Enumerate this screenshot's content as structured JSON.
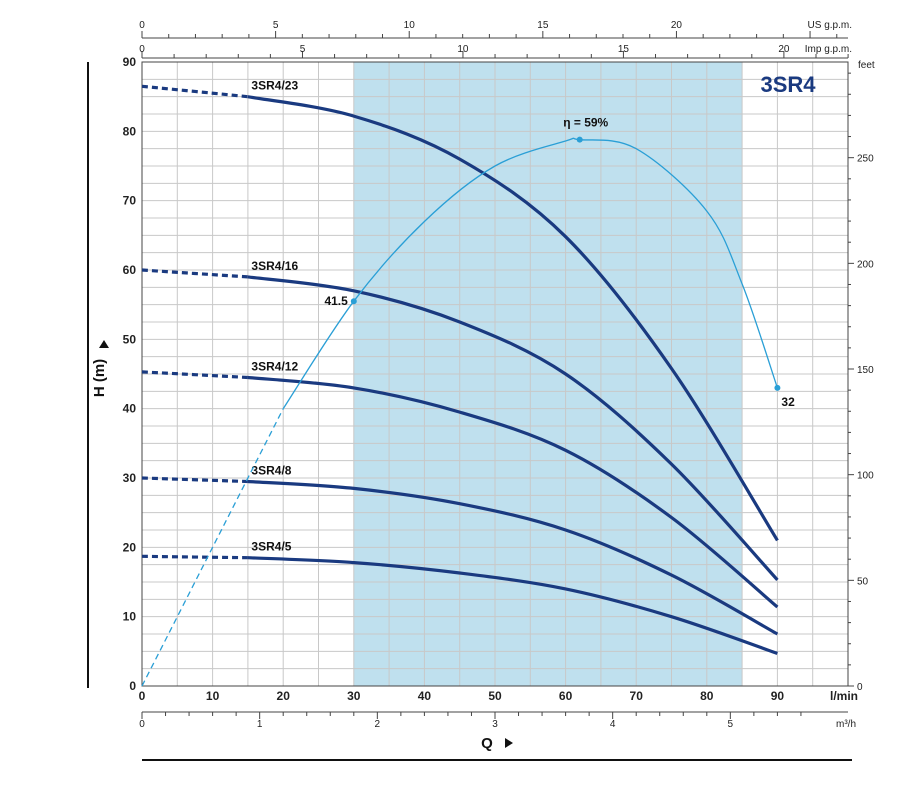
{
  "chart_data": {
    "type": "line",
    "title": "3SR4",
    "colors": {
      "curve": "#1a3a80",
      "efficiency": "#2a9fd6",
      "band": "#bfe0ee",
      "grid": "#c8c8c8",
      "title": "#1a3a80"
    },
    "x_axis": {
      "label": "l/min",
      "range": [
        0,
        100
      ],
      "ticks": [
        "0",
        "10",
        "20",
        "30",
        "40",
        "50",
        "60",
        "70",
        "80",
        "90"
      ],
      "tick_values": [
        0,
        10,
        20,
        30,
        40,
        50,
        60,
        70,
        80,
        90
      ]
    },
    "y_axis": {
      "label": "H (m)",
      "range": [
        0,
        90
      ],
      "ticks": [
        "0",
        "10",
        "20",
        "30",
        "40",
        "50",
        "60",
        "70",
        "80",
        "90"
      ],
      "tick_values": [
        0,
        10,
        20,
        30,
        40,
        50,
        60,
        70,
        80,
        90
      ]
    },
    "y2_axis": {
      "label": "feet",
      "ticks": [
        "0",
        "50",
        "100",
        "150",
        "200",
        "250"
      ],
      "tick_values": [
        0,
        50,
        100,
        150,
        200,
        250
      ]
    },
    "x_m3h_axis": {
      "label": "m³/h",
      "ticks": [
        "0",
        "1",
        "2",
        "3",
        "4",
        "5"
      ],
      "tick_values": [
        0,
        1,
        2,
        3,
        4,
        5
      ]
    },
    "x_usgpm_axis": {
      "label": "US g.p.m.",
      "ticks": [
        "0",
        "5",
        "10",
        "15",
        "20"
      ],
      "tick_values": [
        0,
        5,
        10,
        15,
        20
      ]
    },
    "x_impgpm_axis": {
      "label": "Imp g.p.m.",
      "ticks": [
        "0",
        "5",
        "10",
        "15",
        "20"
      ],
      "tick_values": [
        0,
        5,
        10,
        15,
        20
      ]
    },
    "q_label": "Q",
    "operating_range": [
      30,
      85
    ],
    "series": [
      {
        "name": "3SR4/23",
        "x": [
          0,
          15,
          30,
          45,
          60,
          75,
          90
        ],
        "values": [
          86.5,
          85.0,
          82.2,
          76.0,
          64.8,
          45.8,
          21.0
        ],
        "dashed_until": 15
      },
      {
        "name": "3SR4/16",
        "x": [
          0,
          15,
          30,
          45,
          60,
          75,
          90
        ],
        "values": [
          60.0,
          59.0,
          57.0,
          52.5,
          45.0,
          32.0,
          15.3
        ],
        "dashed_until": 15
      },
      {
        "name": "3SR4/12",
        "x": [
          0,
          15,
          30,
          45,
          60,
          75,
          90
        ],
        "values": [
          45.3,
          44.5,
          43.0,
          39.5,
          34.0,
          24.3,
          11.4
        ],
        "dashed_until": 15
      },
      {
        "name": "3SR4/8",
        "x": [
          0,
          15,
          30,
          45,
          60,
          75,
          90
        ],
        "values": [
          30.0,
          29.5,
          28.5,
          26.3,
          22.5,
          16.0,
          7.5
        ],
        "dashed_until": 15
      },
      {
        "name": "3SR4/5",
        "x": [
          0,
          15,
          30,
          45,
          60,
          75,
          90
        ],
        "values": [
          18.7,
          18.5,
          17.8,
          16.3,
          14.0,
          10.0,
          4.7
        ],
        "dashed_until": 15
      }
    ],
    "efficiency": {
      "x": [
        0,
        10,
        20,
        30,
        40,
        50,
        60,
        62,
        70,
        80,
        85,
        90
      ],
      "values": [
        0,
        20,
        40,
        55.5,
        67.0,
        75.0,
        78.6,
        78.8,
        77.5,
        68.5,
        58.0,
        43.0
      ],
      "dashed_until": 20,
      "peak_label": "η = 59%",
      "peak": [
        62,
        78.8
      ],
      "start_label": "41.5",
      "start_point": [
        30,
        55.5
      ],
      "end_label": "32",
      "end_point": [
        90,
        43.0
      ]
    }
  }
}
